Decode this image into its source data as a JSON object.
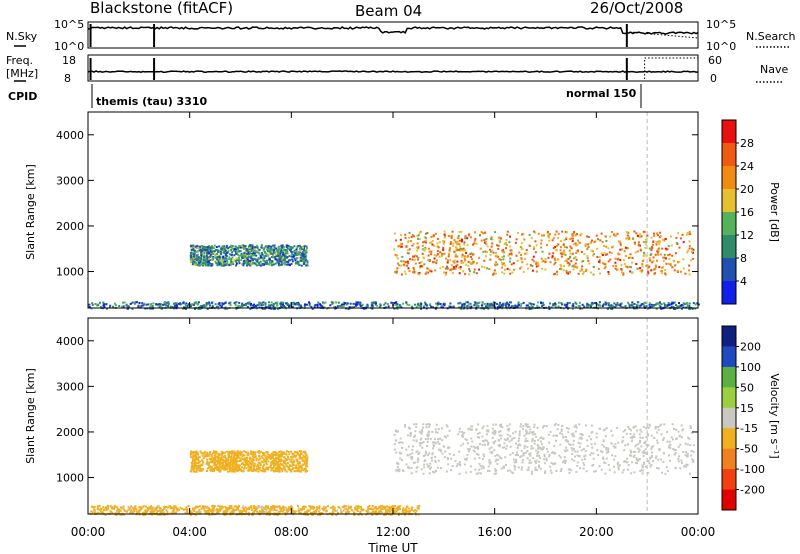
{
  "header": {
    "station": "Blackstone (fitACF)",
    "beam": "Beam 04",
    "date": "26/Oct/2008"
  },
  "nsky_panel": {
    "left_label": "N.Sky",
    "left_ticks": [
      "10^5",
      "10^0"
    ],
    "right_ticks": [
      "10^5",
      "10^0"
    ],
    "right_label": "N.Search"
  },
  "freq_panel": {
    "left_label_line1": "Freq.",
    "left_label_line2": "[MHz]",
    "left_ticks": [
      "18",
      "8"
    ],
    "right_ticks": [
      "60",
      "0"
    ],
    "right_label": "Nave",
    "cpid_label": "CPID",
    "cpid_left": "themis (tau) 3310",
    "cpid_right": "normal 150"
  },
  "colors": {
    "power_scale": [
      "#1020e8",
      "#2050b0",
      "#2e8c6a",
      "#55b25a",
      "#e6c030",
      "#f08a10",
      "#f05a10",
      "#e81010"
    ],
    "velocity_scale": [
      "#102080",
      "#2048c0",
      "#5ab040",
      "#9ad040",
      "#c8c8c0",
      "#f0b020",
      "#f08020",
      "#f04010",
      "#e00000"
    ]
  },
  "chart_data": {
    "type": "heatmap",
    "xlabel": "Time UT",
    "x_tick_labels": [
      "00:00",
      "04:00",
      "08:00",
      "12:00",
      "16:00",
      "20:00",
      "00:00"
    ],
    "xlim_hours": [
      0,
      24
    ],
    "panels": [
      {
        "name": "power",
        "ylabel": "Slant Range [km]",
        "ylim": [
          200,
          4500
        ],
        "y_tick_labels": [
          "1000",
          "2000",
          "3000",
          "4000"
        ],
        "colorbar": {
          "label": "Power [dB]",
          "tick_labels": [
            "28",
            "24",
            "20",
            "16",
            "12",
            "8",
            "4"
          ],
          "range": [
            0,
            32
          ]
        },
        "echo_regions": [
          {
            "start_hour": 4.0,
            "end_hour": 8.6,
            "range_start_km": 1150,
            "range_end_km": 1600,
            "level": 10
          },
          {
            "start_hour": 12.0,
            "end_hour": 23.8,
            "range_start_km": 950,
            "range_end_km": 1900,
            "level": 22
          },
          {
            "start_hour": 0.0,
            "end_hour": 24.0,
            "range_start_km": 200,
            "range_end_km": 350,
            "level": 8
          }
        ]
      },
      {
        "name": "velocity",
        "ylabel": "Slant Range [km]",
        "ylim": [
          200,
          4500
        ],
        "y_tick_labels": [
          "1000",
          "2000",
          "3000",
          "4000"
        ],
        "colorbar": {
          "label": "Velocity [m s⁻¹]",
          "tick_labels": [
            "200",
            "100",
            "50",
            "15",
            "-15",
            "-50",
            "-100",
            "-200"
          ],
          "range": [
            -250,
            250
          ]
        },
        "echo_regions": [
          {
            "start_hour": 4.0,
            "end_hour": 8.6,
            "range_start_km": 1150,
            "range_end_km": 1600,
            "level": -60
          },
          {
            "start_hour": 12.0,
            "end_hour": 23.8,
            "range_start_km": 1100,
            "range_end_km": 2200,
            "level": 0
          },
          {
            "start_hour": 0.0,
            "end_hour": 13.0,
            "range_start_km": 200,
            "range_end_km": 400,
            "level": -40
          }
        ]
      }
    ]
  }
}
